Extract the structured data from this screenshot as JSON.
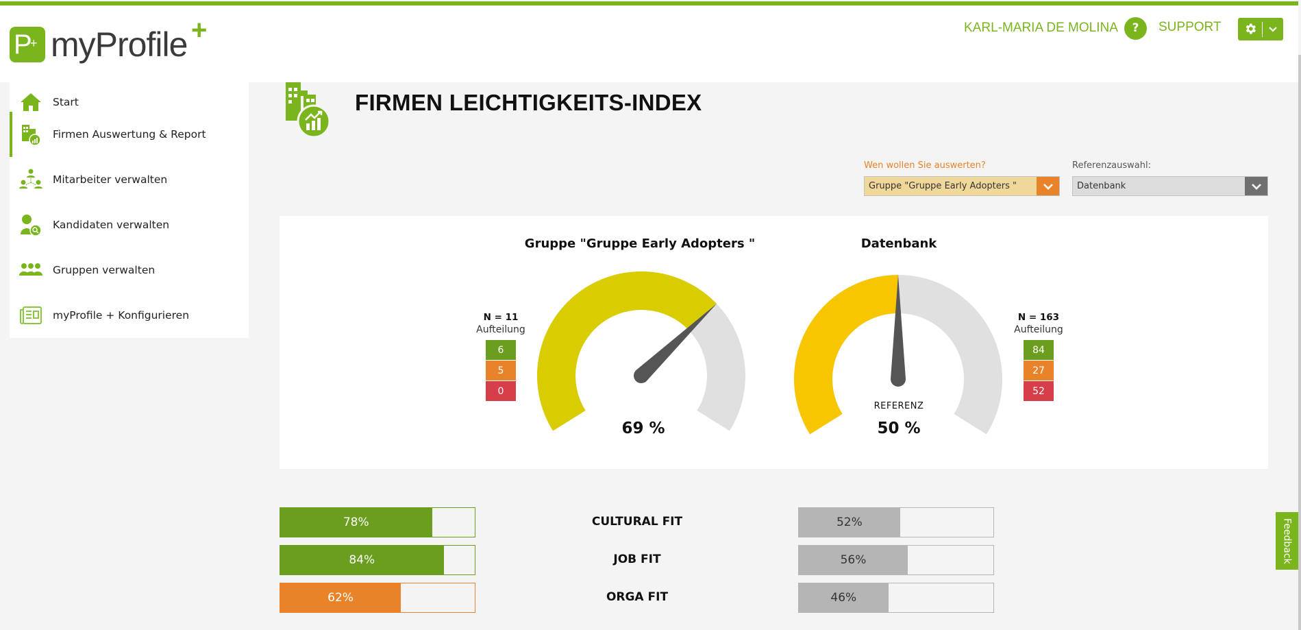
{
  "header": {
    "logo_text": "myProfile",
    "logo_mark": "P",
    "user_name": "KARL-MARIA DE MOLINA",
    "support_icon": "?",
    "support_label": "SUPPORT",
    "settings_icon": "gear-icon"
  },
  "sidebar": {
    "items": [
      {
        "label": "Start",
        "icon": "home-icon",
        "active": false
      },
      {
        "label": "Firmen Auswertung & Report",
        "icon": "company-report-icon",
        "active": true
      },
      {
        "label": "Mitarbeiter verwalten",
        "icon": "employees-network-icon",
        "active": false
      },
      {
        "label": "Kandidaten verwalten",
        "icon": "candidate-search-icon",
        "active": false
      },
      {
        "label": "Gruppen verwalten",
        "icon": "groups-icon",
        "active": false
      },
      {
        "label": "myProfile + Konfigurieren",
        "icon": "configure-newspaper-icon",
        "active": false
      }
    ]
  },
  "page": {
    "title": "FIRMEN LEICHTIGKEITS-INDEX"
  },
  "filters": {
    "evaluate_label": "Wen wollen Sie auswerten?",
    "evaluate_value": "Gruppe \"Gruppe Early Adopters \"",
    "reference_label": "Referenzauswahl:",
    "reference_value": "Datenbank"
  },
  "gauges": [
    {
      "title": "Gruppe \"Gruppe Early Adopters \"",
      "value": 69,
      "value_label": "69 %",
      "reference_label": "",
      "n_label": "N = 11",
      "split_label": "Aufteilung",
      "split": [
        6,
        5,
        0
      ],
      "color": "#d9cc00"
    },
    {
      "title": "Datenbank",
      "value": 50,
      "value_label": "50 %",
      "reference_label": "REFERENZ",
      "n_label": "N = 163",
      "split_label": "Aufteilung",
      "split": [
        84,
        27,
        52
      ],
      "color": "#f8c600"
    }
  ],
  "fits": [
    {
      "label": "CULTURAL FIT",
      "group": 78,
      "group_label": "78%",
      "group_color": "green",
      "reference": 52,
      "reference_label": "52%"
    },
    {
      "label": "JOB FIT",
      "group": 84,
      "group_label": "84%",
      "group_color": "green",
      "reference": 56,
      "reference_label": "56%"
    },
    {
      "label": "ORGA FIT",
      "group": 62,
      "group_label": "62%",
      "group_color": "orange",
      "reference": 46,
      "reference_label": "46%"
    }
  ],
  "feedback_label": "Feedback",
  "colors": {
    "brand_green": "#7ab51d",
    "split_green": "#6b9e1e",
    "split_orange": "#e8832a",
    "split_red": "#d63e4a",
    "gauge_track": "#e0e0e0",
    "needle": "#555555"
  },
  "chart_data": [
    {
      "type": "gauge",
      "title": "Gruppe \"Gruppe Early Adopters \"",
      "value": 69,
      "unit": "%",
      "range": [
        0,
        100
      ],
      "n": 11,
      "split": {
        "green": 6,
        "orange": 5,
        "red": 0
      }
    },
    {
      "type": "gauge",
      "title": "Datenbank",
      "subtitle": "REFERENZ",
      "value": 50,
      "unit": "%",
      "range": [
        0,
        100
      ],
      "n": 163,
      "split": {
        "green": 84,
        "orange": 27,
        "red": 52
      }
    },
    {
      "type": "bar",
      "orientation": "horizontal",
      "categories": [
        "CULTURAL FIT",
        "JOB FIT",
        "ORGA FIT"
      ],
      "series": [
        {
          "name": "Gruppe \"Gruppe Early Adopters \"",
          "values": [
            78,
            84,
            62
          ]
        },
        {
          "name": "Datenbank",
          "values": [
            52,
            56,
            46
          ]
        }
      ],
      "xlim": [
        0,
        100
      ]
    }
  ]
}
